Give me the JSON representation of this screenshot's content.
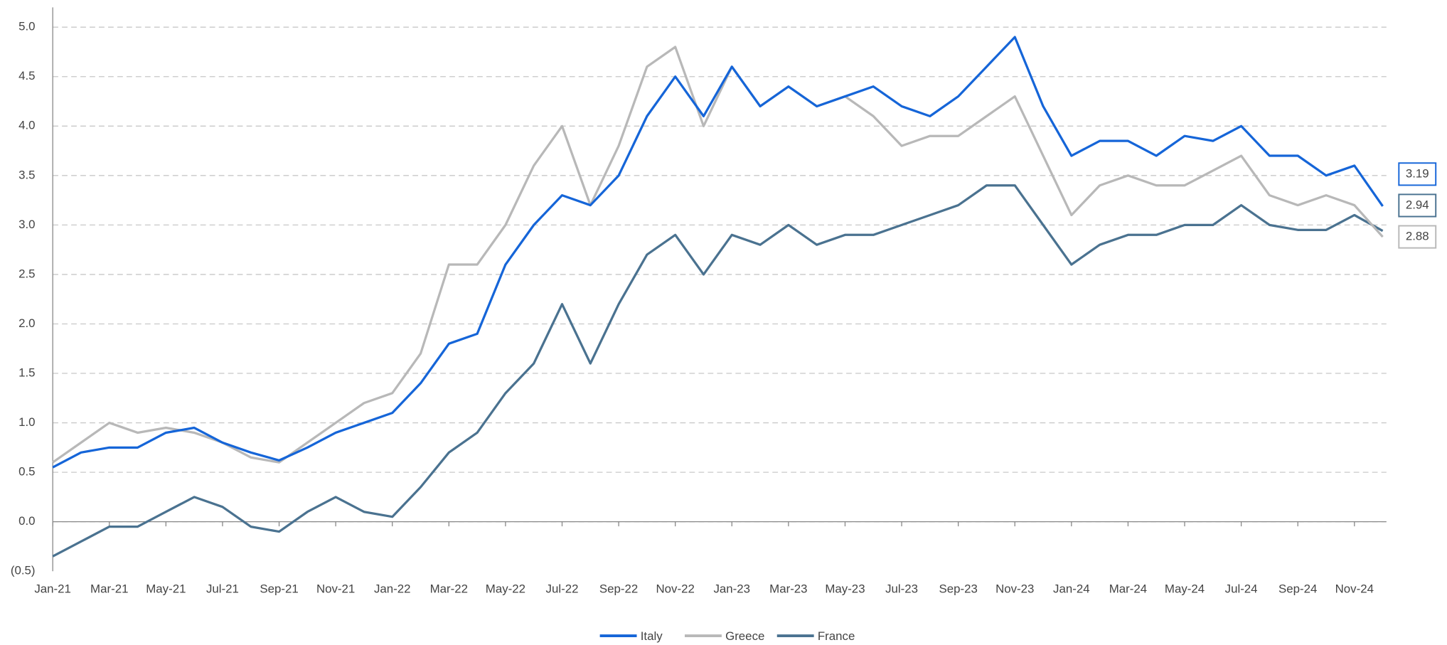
{
  "chart_data": {
    "type": "line",
    "categories": [
      "Jan-21",
      null,
      "Mar-21",
      null,
      "May-21",
      null,
      "Jul-21",
      null,
      "Sep-21",
      null,
      "Nov-21",
      null,
      "Jan-22",
      null,
      "Mar-22",
      null,
      "May-22",
      null,
      "Jul-22",
      null,
      "Sep-22",
      null,
      "Nov-22",
      null,
      "Jan-23",
      null,
      "Mar-23",
      null,
      "May-23",
      null,
      "Jul-23",
      null,
      "Sep-23",
      null,
      "Nov-23",
      null,
      "Jan-24",
      null,
      "Mar-24",
      null,
      "May-24",
      null,
      "Jul-24",
      null,
      "Sep-24",
      null,
      "Nov-24",
      null
    ],
    "series": [
      {
        "name": "Italy",
        "color": "#1565d8",
        "values": [
          0.55,
          0.7,
          0.75,
          0.75,
          0.9,
          0.95,
          0.8,
          0.7,
          0.62,
          0.75,
          0.9,
          1.0,
          1.1,
          1.4,
          1.8,
          1.9,
          2.6,
          3.0,
          3.3,
          3.2,
          3.5,
          4.1,
          4.5,
          4.1,
          4.6,
          4.2,
          4.4,
          4.2,
          4.3,
          4.4,
          4.2,
          4.1,
          4.3,
          4.6,
          4.9,
          4.2,
          3.7,
          3.85,
          3.85,
          3.7,
          3.9,
          3.85,
          4.0,
          3.7,
          3.7,
          3.5,
          3.6,
          3.19
        ]
      },
      {
        "name": "Greece",
        "color": "#b8b8b8",
        "values": [
          0.6,
          0.8,
          1.0,
          0.9,
          0.95,
          0.9,
          0.8,
          0.65,
          0.6,
          0.8,
          1.0,
          1.2,
          1.3,
          1.7,
          2.6,
          2.6,
          3.0,
          3.6,
          4.0,
          3.2,
          3.8,
          4.6,
          4.8,
          4.0,
          4.6,
          4.2,
          4.4,
          4.2,
          4.3,
          4.1,
          3.8,
          3.9,
          3.9,
          4.1,
          4.3,
          3.7,
          3.1,
          3.4,
          3.5,
          3.4,
          3.4,
          3.55,
          3.7,
          3.3,
          3.2,
          3.3,
          3.2,
          2.88
        ]
      },
      {
        "name": "France",
        "color": "#4a7290",
        "values": [
          -0.35,
          -0.2,
          -0.05,
          -0.05,
          0.1,
          0.25,
          0.15,
          -0.05,
          -0.1,
          0.1,
          0.25,
          0.1,
          0.05,
          0.35,
          0.7,
          0.9,
          1.3,
          1.6,
          2.2,
          1.6,
          2.2,
          2.7,
          2.9,
          2.5,
          2.9,
          2.8,
          3.0,
          2.8,
          2.9,
          2.9,
          3.0,
          3.1,
          3.2,
          3.4,
          3.4,
          3.0,
          2.6,
          2.8,
          2.9,
          2.9,
          3.0,
          3.0,
          3.2,
          3.0,
          2.95,
          2.95,
          3.1,
          2.94
        ]
      }
    ],
    "ylim": [
      -0.5,
      5.2
    ],
    "yticks": [
      {
        "value": -0.5,
        "label": "(0.5)"
      },
      {
        "value": 0,
        "label": "0.0"
      },
      0.5,
      {
        "value": 1,
        "label": "1.0"
      },
      1.5,
      {
        "value": 2,
        "label": "2.0"
      },
      2.5,
      {
        "value": 3,
        "label": "3.0"
      },
      3.5,
      {
        "value": 4,
        "label": "4.0"
      },
      4.5,
      {
        "value": 5,
        "label": "5.0"
      }
    ],
    "grid": true,
    "legend": "bottom"
  }
}
